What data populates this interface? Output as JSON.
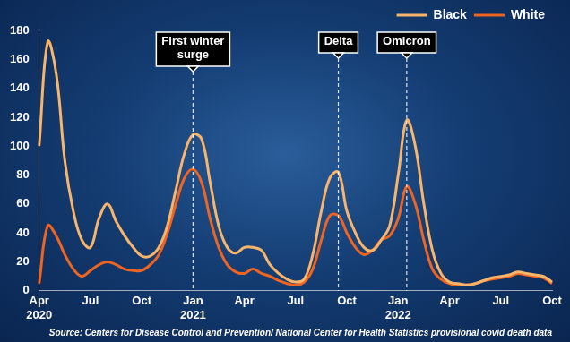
{
  "chart_data": {
    "type": "line",
    "categories": [
      "Apr 2020",
      null,
      null,
      null,
      null,
      null,
      "Jul",
      null,
      null,
      null,
      null,
      null,
      "Oct",
      null,
      null,
      null,
      null,
      null,
      "Jan 2021",
      null,
      null,
      null,
      null,
      null,
      "Apr",
      null,
      null,
      null,
      null,
      null,
      "Jul",
      null,
      null,
      null,
      null,
      null,
      "Oct",
      null,
      null,
      null,
      null,
      null,
      "Jan 2022",
      null,
      null,
      null,
      null,
      null,
      "Apr",
      null,
      null,
      null,
      null,
      null,
      "Jul",
      null,
      null,
      null,
      null,
      null,
      "Oct"
    ],
    "series": [
      {
        "name": "Black",
        "color": "#f7b46a",
        "values": [
          100,
          172,
          150,
          90,
          55,
          35,
          30,
          50,
          60,
          48,
          38,
          30,
          24,
          24,
          30,
          45,
          70,
          95,
          108,
          105,
          75,
          45,
          30,
          26,
          30,
          30,
          28,
          18,
          12,
          8,
          6,
          8,
          25,
          55,
          78,
          82,
          55,
          40,
          30,
          28,
          35,
          45,
          80,
          118,
          100,
          60,
          28,
          12,
          6,
          5,
          4,
          5,
          7,
          9,
          10,
          11,
          13,
          12,
          11,
          10,
          6
        ]
      },
      {
        "name": "White",
        "color": "#ef6420",
        "values": [
          5,
          45,
          38,
          25,
          15,
          10,
          14,
          18,
          20,
          18,
          15,
          14,
          14,
          18,
          25,
          40,
          60,
          78,
          84,
          75,
          50,
          30,
          18,
          13,
          12,
          15,
          12,
          10,
          7,
          5,
          4,
          6,
          15,
          35,
          52,
          52,
          40,
          30,
          25,
          28,
          35,
          38,
          50,
          72,
          60,
          35,
          15,
          8,
          5,
          4,
          4,
          5,
          7,
          8,
          9,
          10,
          12,
          11,
          10,
          9,
          5
        ]
      }
    ],
    "ylim": [
      0,
      180
    ],
    "yticks": [
      0,
      20,
      40,
      60,
      80,
      100,
      120,
      140,
      160,
      180
    ],
    "grid": false,
    "legend": "top right",
    "annotations": [
      {
        "text": "First winter surge",
        "index": 18
      },
      {
        "text": "Delta",
        "index": 35
      },
      {
        "text": "Omicron",
        "index": 43
      }
    ],
    "source": "Source: Centers for Disease Control and Prevention/ National Center for Health Statistics provisional covid death data"
  }
}
